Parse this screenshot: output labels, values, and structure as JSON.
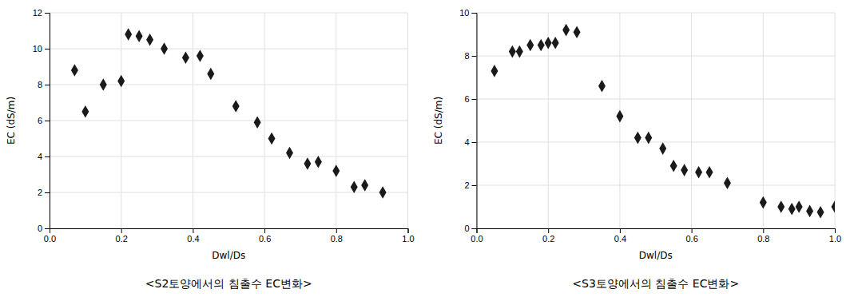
{
  "chart_data": [
    {
      "type": "scatter",
      "title": "<S2토양에서의 침출수 EC변화>",
      "xlabel": "Dwl/Ds",
      "ylabel": "EC (dS/m)",
      "x": [
        0.07,
        0.1,
        0.15,
        0.2,
        0.22,
        0.25,
        0.28,
        0.32,
        0.38,
        0.42,
        0.45,
        0.52,
        0.58,
        0.62,
        0.67,
        0.72,
        0.75,
        0.8,
        0.85,
        0.88,
        0.93
      ],
      "values": [
        8.8,
        6.5,
        8.0,
        8.2,
        10.8,
        10.7,
        10.5,
        10.0,
        9.5,
        9.6,
        8.6,
        6.8,
        5.9,
        5.0,
        4.2,
        3.6,
        3.7,
        3.2,
        2.3,
        2.4,
        2.0
      ],
      "xlim": [
        0,
        1
      ],
      "ylim": [
        0,
        12
      ],
      "xticks": [
        {
          "value": 0,
          "label": "0.0"
        },
        0.2,
        0.4,
        0.6,
        0.8,
        {
          "value": 1,
          "label": "1.0"
        }
      ],
      "yticks": [
        0,
        2,
        4,
        6,
        8,
        10,
        12
      ],
      "grid": true,
      "color": "#1a1a1a",
      "marker": "diamond"
    },
    {
      "type": "scatter",
      "title": "<S3토양에서의 침출수 EC변화>",
      "xlabel": "Dwl/Ds",
      "ylabel": "EC (dS/m)",
      "x": [
        0.05,
        0.1,
        0.12,
        0.15,
        0.18,
        0.2,
        0.22,
        0.25,
        0.28,
        0.35,
        0.4,
        0.45,
        0.48,
        0.52,
        0.55,
        0.58,
        0.62,
        0.65,
        0.7,
        0.8,
        0.85,
        0.88,
        0.9,
        0.93,
        0.96,
        1.0
      ],
      "values": [
        7.3,
        8.2,
        8.2,
        8.5,
        8.5,
        8.6,
        8.6,
        9.2,
        9.1,
        6.6,
        5.2,
        4.2,
        4.2,
        3.7,
        2.9,
        2.7,
        2.6,
        2.6,
        2.1,
        1.2,
        1.0,
        0.9,
        1.0,
        0.8,
        0.75,
        1.0
      ],
      "xlim": [
        0,
        1
      ],
      "ylim": [
        0,
        10
      ],
      "xticks": [
        {
          "value": 0,
          "label": "0.0"
        },
        0.2,
        0.4,
        0.6,
        0.8,
        {
          "value": 1,
          "label": "1.0"
        }
      ],
      "yticks": [
        0,
        2,
        4,
        6,
        8,
        10
      ],
      "grid": true,
      "color": "#1a1a1a",
      "marker": "diamond"
    }
  ]
}
